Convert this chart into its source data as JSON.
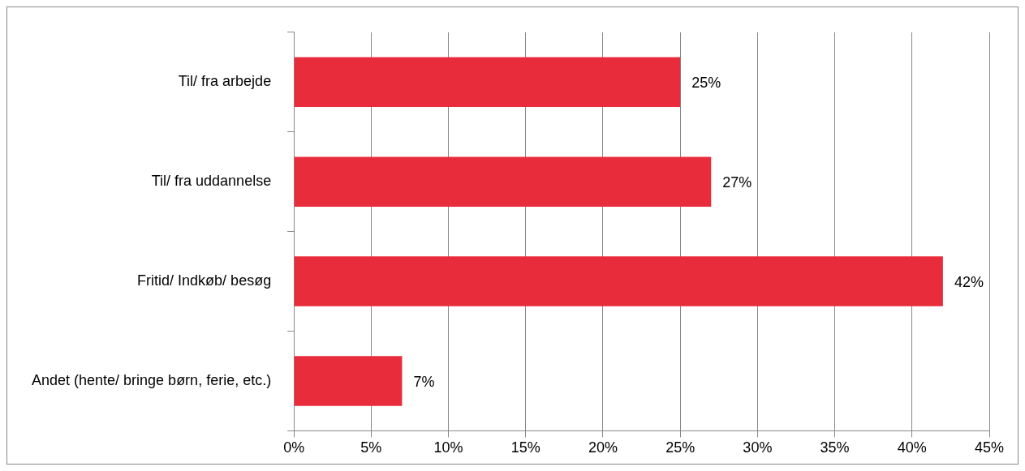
{
  "chart_data": {
    "type": "bar",
    "orientation": "horizontal",
    "categories": [
      "Til/ fra arbejde",
      "Til/ fra uddannelse",
      "Fritid/ Indkøb/ besøg",
      "Andet (hente/ bringe børn, ferie, etc.)"
    ],
    "values": [
      25,
      27,
      42,
      7
    ],
    "value_labels": [
      "25%",
      "27%",
      "42%",
      "7%"
    ],
    "color": "#e92c3b",
    "xlim": [
      0,
      45
    ],
    "xticks": [
      {
        "value": 0,
        "label": "0%"
      },
      {
        "value": 5,
        "label": "5%"
      },
      {
        "value": 10,
        "label": "10%"
      },
      {
        "value": 15,
        "label": "15%"
      },
      {
        "value": 20,
        "label": "20%"
      },
      {
        "value": 25,
        "label": "25%"
      },
      {
        "value": 30,
        "label": "30%"
      },
      {
        "value": 35,
        "label": "35%"
      },
      {
        "value": 40,
        "label": "40%"
      },
      {
        "value": 45,
        "label": "45%"
      }
    ],
    "grid": "x",
    "legend": false
  }
}
